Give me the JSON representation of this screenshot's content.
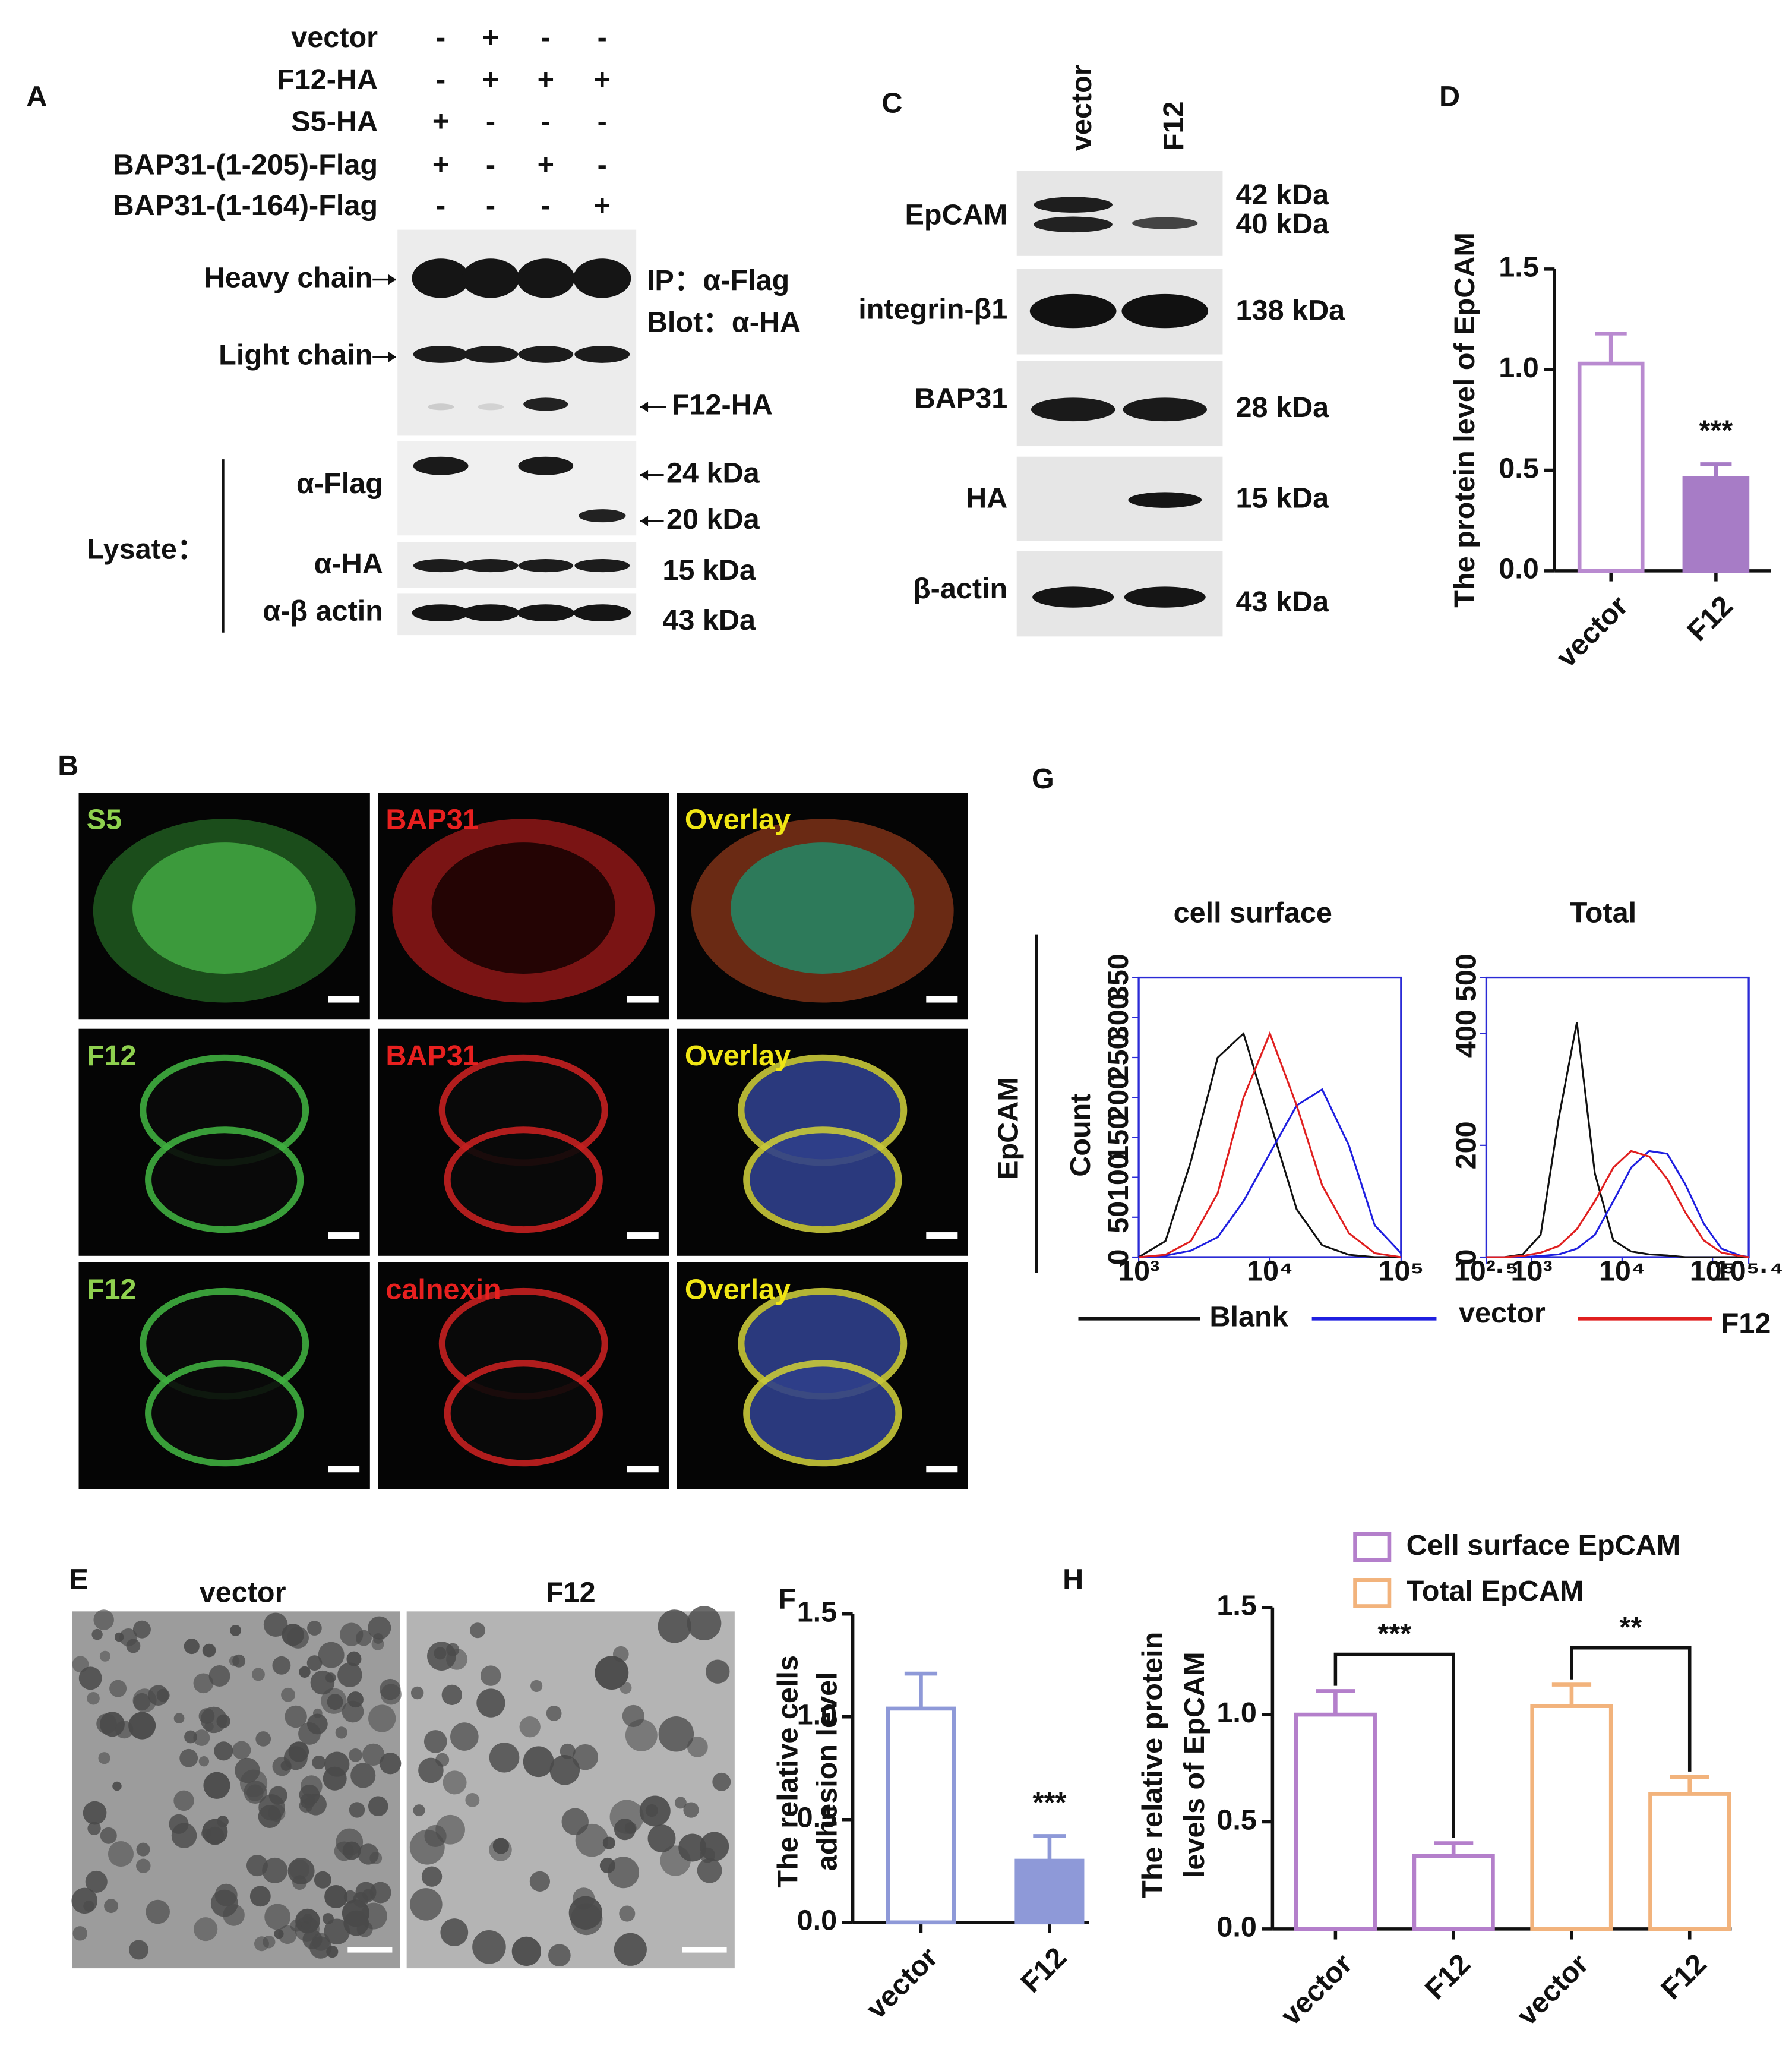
{
  "panel_a": {
    "letter": "A",
    "conditions": [
      {
        "name": "vector",
        "signs": [
          "-",
          "+",
          "-",
          "-"
        ]
      },
      {
        "name": "F12-HA",
        "signs": [
          "-",
          "+",
          "+",
          "+"
        ]
      },
      {
        "name": "S5-HA",
        "signs": [
          "+",
          "-",
          "-",
          "-"
        ]
      },
      {
        "name": "BAP31-(1-205)-Flag",
        "signs": [
          "+",
          "-",
          "+",
          "-"
        ]
      },
      {
        "name": "BAP31-(1-164)-Flag",
        "signs": [
          "-",
          "-",
          "-",
          "+"
        ]
      }
    ],
    "ip_labels": [
      "Heavy chain",
      "Light chain"
    ],
    "ip": "IP：α-Flag",
    "blot": "Blot：α-HA",
    "band": "F12-HA",
    "lysate": "Lysate：",
    "lysate_rows": [
      {
        "antibody": "α-Flag",
        "sizes": [
          "24 kDa",
          "20 kDa"
        ]
      },
      {
        "antibody": "α-HA",
        "sizes": [
          "15 kDa"
        ]
      },
      {
        "antibody": "α-β actin",
        "sizes": [
          "43 kDa"
        ]
      }
    ]
  },
  "panel_b": {
    "letter": "B",
    "rows": [
      [
        "S5",
        "BAP31",
        "Overlay"
      ],
      [
        "F12",
        "BAP31",
        "Overlay"
      ],
      [
        "F12",
        "calnexin",
        "Overlay"
      ]
    ]
  },
  "panel_c": {
    "letter": "C",
    "lanes": [
      "vector",
      "F12"
    ],
    "rows": [
      {
        "antibody": "EpCAM",
        "sizes": [
          "42 kDa",
          "40 kDa"
        ]
      },
      {
        "antibody": "integrin-β1",
        "sizes": [
          "138 kDa"
        ]
      },
      {
        "antibody": "BAP31",
        "sizes": [
          "28 kDa"
        ]
      },
      {
        "antibody": "HA",
        "sizes": [
          "15 kDa"
        ]
      },
      {
        "antibody": "β-actin",
        "sizes": [
          "43 kDa"
        ]
      }
    ]
  },
  "panel_e": {
    "letter": "E",
    "images": [
      "vector",
      "F12"
    ]
  },
  "panel_g": {
    "letter": "G",
    "row_label": "EpCAM"
  },
  "chart_data": [
    {
      "type": "bar",
      "panel": "D",
      "ylabel": [
        "The protein level of EpCAM"
      ],
      "categories": [
        "vector",
        "F12"
      ],
      "values": [
        1.03,
        0.46
      ],
      "errors": [
        0.15,
        0.07
      ],
      "colors": [
        "#b98ad0",
        "#a77cc6"
      ],
      "filled": [
        false,
        true
      ],
      "ylim": [
        0,
        1.5
      ],
      "yticks": [
        {
          "value": 0,
          "label": "0.0"
        },
        0.5,
        {
          "value": 1,
          "label": "1.0"
        },
        1.5
      ],
      "annotation": "***"
    },
    {
      "type": "bar",
      "panel": "F",
      "ylabel": [
        "The relative cells",
        "adhesion level"
      ],
      "categories": [
        "vector",
        "F12"
      ],
      "values": [
        1.04,
        0.3
      ],
      "errors": [
        0.17,
        0.12
      ],
      "colors": [
        "#8e99d8",
        "#8e99d8"
      ],
      "filled": [
        false,
        true
      ],
      "ylim": [
        0,
        1.5
      ],
      "yticks": [
        {
          "value": 0,
          "label": "0.0"
        },
        0.5,
        {
          "value": 1,
          "label": "1.0"
        },
        1.5
      ],
      "annotation": "***"
    },
    {
      "type": "line",
      "title": "cell surface",
      "ylabel": "Count",
      "xscale": "log",
      "frame_color": "#2b2bd6",
      "x": [
        1000,
        1600,
        2500,
        4000,
        6300,
        10000,
        16000,
        25000,
        40000,
        63000,
        100000
      ],
      "series": [
        {
          "name": "Blank",
          "color": "#111111",
          "values": [
            0,
            20,
            120,
            250,
            280,
            170,
            60,
            15,
            3,
            0,
            0
          ]
        },
        {
          "name": "vector",
          "color": "#1f1fe0",
          "values": [
            0,
            2,
            8,
            25,
            70,
            130,
            190,
            210,
            140,
            40,
            5
          ]
        },
        {
          "name": "F12",
          "color": "#e01f1f",
          "values": [
            0,
            3,
            20,
            80,
            200,
            280,
            190,
            90,
            30,
            5,
            0
          ]
        }
      ],
      "xlim": [
        1000,
        100000
      ],
      "xticks": [
        {
          "value": 1000,
          "label": "10³"
        },
        {
          "value": 10000,
          "label": "10⁴"
        },
        {
          "value": 100000,
          "label": "10⁵"
        }
      ],
      "ylim": [
        0,
        350
      ],
      "yticks": [
        0,
        50,
        100,
        150,
        200,
        250,
        300,
        350
      ]
    },
    {
      "type": "line",
      "title": "Total",
      "xscale": "log",
      "frame_color": "#2b2bd6",
      "x": [
        316,
        500,
        800,
        1260,
        2000,
        3160,
        5000,
        8000,
        12600,
        20000,
        31600,
        50000,
        80000,
        126000,
        200000,
        251000
      ],
      "series": [
        {
          "name": "Blank",
          "color": "#111111",
          "values": [
            0,
            0,
            5,
            40,
            250,
            420,
            150,
            30,
            10,
            5,
            3,
            0,
            0,
            0,
            0,
            0
          ]
        },
        {
          "name": "vector",
          "color": "#1f1fe0",
          "values": [
            0,
            0,
            0,
            2,
            5,
            15,
            40,
            100,
            160,
            190,
            185,
            130,
            60,
            15,
            3,
            0
          ]
        },
        {
          "name": "F12",
          "color": "#e01f1f",
          "values": [
            0,
            0,
            2,
            8,
            20,
            50,
            100,
            160,
            190,
            180,
            140,
            80,
            30,
            8,
            2,
            0
          ]
        }
      ],
      "xlim": [
        316,
        251189
      ],
      "xticks": [
        {
          "value": 316,
          "label": "10²·⁵"
        },
        {
          "value": 1000,
          "label": "10³"
        },
        {
          "value": 10000,
          "label": "10⁴"
        },
        {
          "value": 100000,
          "label": "10⁵"
        },
        {
          "value": 251189,
          "label": "10⁵·⁴"
        }
      ],
      "ylim": [
        0,
        500
      ],
      "yticks": [
        0,
        200,
        400,
        500
      ]
    },
    {
      "type": "bar",
      "panel": "H",
      "ylabel": [
        "The relative protein",
        "levels of EpCAM"
      ],
      "categories": [
        "vector",
        "F12",
        "vector",
        "F12"
      ],
      "series": [
        {
          "name": "Cell surface EpCAM",
          "color": "#b47fcb",
          "values": [
            1.0,
            0.34,
            null,
            null
          ],
          "errors": [
            0.11,
            0.06,
            null,
            null
          ]
        },
        {
          "name": "Total EpCAM",
          "color": "#f2b37c",
          "values": [
            null,
            null,
            1.04,
            0.63
          ],
          "errors": [
            null,
            null,
            0.1,
            0.08
          ]
        }
      ],
      "filled": [
        false,
        false,
        false,
        false
      ],
      "ylim": [
        0,
        1.5
      ],
      "yticks": [
        {
          "value": 0,
          "label": "0.0"
        },
        0.5,
        {
          "value": 1,
          "label": "1.0"
        },
        1.5
      ],
      "annotations": [
        "***",
        "**"
      ]
    }
  ]
}
